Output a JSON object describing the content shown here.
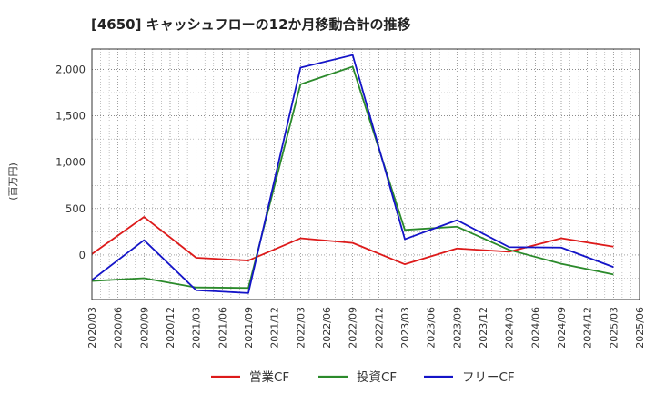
{
  "chart_data": {
    "type": "line",
    "title": "[4650]  キャッシュフローの12か月移動合計の推移",
    "ylabel": "(百万円)",
    "xlabel": "",
    "ylim": [
      -480,
      2220
    ],
    "yticks": [
      0,
      500,
      1000,
      1500,
      2000
    ],
    "ytick_labels": [
      "0",
      "500",
      "1,000",
      "1,500",
      "2,000"
    ],
    "xticks": [
      "2020/03",
      "2020/06",
      "2020/09",
      "2020/12",
      "2021/03",
      "2021/06",
      "2021/09",
      "2021/12",
      "2022/03",
      "2022/06",
      "2022/09",
      "2022/12",
      "2023/03",
      "2023/06",
      "2023/09",
      "2023/12",
      "2024/03",
      "2024/06",
      "2024/09",
      "2024/12",
      "2025/03",
      "2025/06"
    ],
    "grid": true,
    "legend_position": "bottom",
    "series": [
      {
        "name": "営業CF",
        "color": "#dd1a1a",
        "points": [
          {
            "x": "2020/03",
            "y": 10
          },
          {
            "x": "2020/09",
            "y": 410
          },
          {
            "x": "2021/03",
            "y": -30
          },
          {
            "x": "2021/09",
            "y": -60
          },
          {
            "x": "2022/03",
            "y": 180
          },
          {
            "x": "2022/09",
            "y": 130
          },
          {
            "x": "2023/03",
            "y": -100
          },
          {
            "x": "2023/09",
            "y": 70
          },
          {
            "x": "2024/03",
            "y": 35
          },
          {
            "x": "2024/09",
            "y": 180
          },
          {
            "x": "2025/03",
            "y": 90
          }
        ]
      },
      {
        "name": "投資CF",
        "color": "#2b8a2b",
        "points": [
          {
            "x": "2020/03",
            "y": -280
          },
          {
            "x": "2020/09",
            "y": -250
          },
          {
            "x": "2021/03",
            "y": -350
          },
          {
            "x": "2021/09",
            "y": -355
          },
          {
            "x": "2022/03",
            "y": 1840
          },
          {
            "x": "2022/09",
            "y": 2030
          },
          {
            "x": "2023/03",
            "y": 270
          },
          {
            "x": "2023/09",
            "y": 305
          },
          {
            "x": "2024/03",
            "y": 55
          },
          {
            "x": "2024/09",
            "y": -95
          },
          {
            "x": "2025/03",
            "y": -210
          }
        ]
      },
      {
        "name": "フリーCF",
        "color": "#1414c8",
        "points": [
          {
            "x": "2020/03",
            "y": -270
          },
          {
            "x": "2020/09",
            "y": 160
          },
          {
            "x": "2021/03",
            "y": -380
          },
          {
            "x": "2021/09",
            "y": -410
          },
          {
            "x": "2022/03",
            "y": 2020
          },
          {
            "x": "2022/09",
            "y": 2155
          },
          {
            "x": "2023/03",
            "y": 170
          },
          {
            "x": "2023/09",
            "y": 375
          },
          {
            "x": "2024/03",
            "y": 85
          },
          {
            "x": "2024/09",
            "y": 80
          },
          {
            "x": "2025/03",
            "y": -130
          }
        ]
      }
    ]
  }
}
